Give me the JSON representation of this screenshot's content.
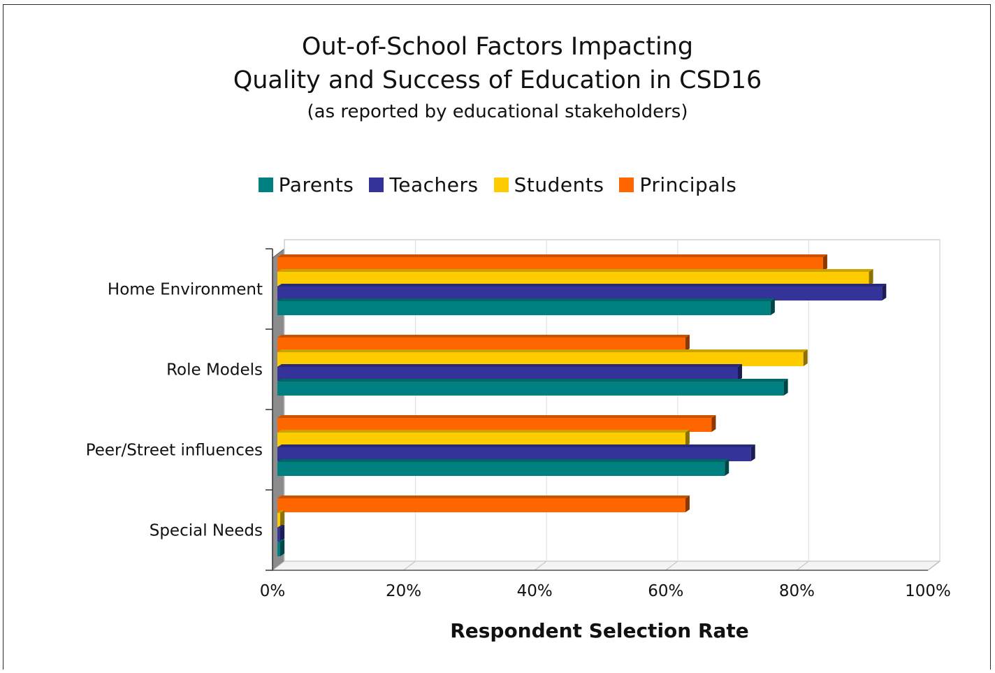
{
  "chart_data": {
    "type": "bar",
    "orientation": "horizontal",
    "title": "Out-of-School Factors Impacting",
    "title_line2": "Quality and Success of Education in CSD16",
    "subtitle": "(as reported by educational stakeholders)",
    "xlabel": "Respondent Selection Rate",
    "ylabel": "",
    "xlim": [
      0,
      1
    ],
    "x_ticks": [
      "0%",
      "20%",
      "40%",
      "60%",
      "80%",
      "100%"
    ],
    "grid": true,
    "legend_position": "top",
    "categories": [
      "Home Environment",
      "Role Models",
      "Peer/Street influences",
      "Special Needs"
    ],
    "series": [
      {
        "name": "Parents",
        "color": "#008080",
        "values": [
          0.76,
          0.78,
          0.69,
          0.0
        ]
      },
      {
        "name": "Teachers",
        "color": "#333399",
        "values": [
          0.93,
          0.71,
          0.73,
          0.0
        ]
      },
      {
        "name": "Students",
        "color": "#FFCC00",
        "values": [
          0.91,
          0.81,
          0.63,
          0.0
        ]
      },
      {
        "name": "Principals",
        "color": "#FF6600",
        "values": [
          0.84,
          0.63,
          0.67,
          0.63
        ]
      }
    ]
  }
}
